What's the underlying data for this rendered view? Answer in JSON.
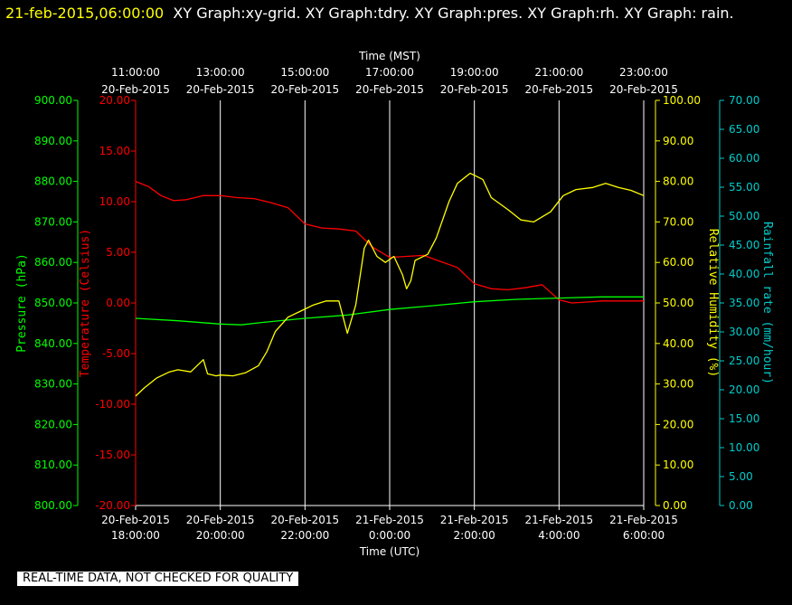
{
  "header": {
    "timestamp": "21-feb-2015,06:00:00",
    "graphs": "XY Graph:xy-grid.  XY Graph:tdry.  XY Graph:pres.  XY Graph:rh.  XY Graph: rain."
  },
  "footer": {
    "quality_note": "REAL-TIME DATA, NOT CHECKED FOR QUALITY"
  },
  "colors": {
    "background": "#000000",
    "temperature": "#ff0000",
    "pressure": "#00ff00",
    "humidity": "#ffff00",
    "rain": "#00cccc",
    "grid": "#ffffff"
  },
  "chart_data": {
    "type": "line",
    "x_range_utc_hours": [
      18,
      30
    ],
    "top_axis": {
      "label": "Time (MST)",
      "ticks": [
        {
          "t": "11:00:00",
          "d": "20-Feb-2015"
        },
        {
          "t": "13:00:00",
          "d": "20-Feb-2015"
        },
        {
          "t": "15:00:00",
          "d": "20-Feb-2015"
        },
        {
          "t": "17:00:00",
          "d": "20-Feb-2015"
        },
        {
          "t": "19:00:00",
          "d": "20-Feb-2015"
        },
        {
          "t": "21:00:00",
          "d": "20-Feb-2015"
        },
        {
          "t": "23:00:00",
          "d": "20-Feb-2015"
        }
      ]
    },
    "bottom_axis": {
      "label": "Time (UTC)",
      "ticks": [
        {
          "d": "20-Feb-2015",
          "t": "18:00:00"
        },
        {
          "d": "20-Feb-2015",
          "t": "20:00:00"
        },
        {
          "d": "20-Feb-2015",
          "t": "22:00:00"
        },
        {
          "d": "21-Feb-2015",
          "t": "0:00:00"
        },
        {
          "d": "21-Feb-2015",
          "t": "2:00:00"
        },
        {
          "d": "21-Feb-2015",
          "t": "4:00:00"
        },
        {
          "d": "21-Feb-2015",
          "t": "6:00:00"
        }
      ]
    },
    "pressure_axis": {
      "label": "Pressure (hPa)",
      "ylim": [
        800,
        900
      ],
      "ticks": [
        "800.00",
        "810.00",
        "820.00",
        "830.00",
        "840.00",
        "850.00",
        "860.00",
        "870.00",
        "880.00",
        "890.00",
        "900.00"
      ]
    },
    "temperature_axis": {
      "label": "Temperature (Celsius)",
      "ylim": [
        -20,
        20
      ],
      "ticks": [
        "-20.00",
        "-15.00",
        "-10.00",
        "-5.00",
        "0.00",
        "5.00",
        "10.00",
        "15.00",
        "20.00"
      ]
    },
    "humidity_axis": {
      "label": "Relative Humidity (%)",
      "ylim": [
        0,
        100
      ],
      "ticks": [
        "0.00",
        "10.00",
        "20.00",
        "30.00",
        "40.00",
        "50.00",
        "60.00",
        "70.00",
        "80.00",
        "90.00",
        "100.00"
      ]
    },
    "rain_axis": {
      "label": "Rainfall rate (mm/hour)",
      "ylim": [
        0,
        70
      ],
      "ticks": [
        "0.00",
        "5.00",
        "10.00",
        "15.00",
        "20.00",
        "25.00",
        "30.00",
        "35.00",
        "40.00",
        "45.00",
        "50.00",
        "55.00",
        "60.00",
        "65.00",
        "70.00"
      ]
    },
    "series": [
      {
        "name": "tdry",
        "axis": "temperature",
        "x": [
          18.0,
          18.3,
          18.6,
          18.9,
          19.2,
          19.6,
          20.0,
          20.4,
          20.8,
          21.2,
          21.6,
          22.0,
          22.4,
          22.8,
          23.2,
          23.6,
          24.0,
          24.4,
          24.8,
          25.2,
          25.6,
          26.0,
          26.4,
          26.8,
          27.2,
          27.6,
          28.0,
          28.3,
          28.7,
          29.0,
          29.4,
          29.8,
          30.0
        ],
        "y": [
          12.0,
          11.5,
          10.6,
          10.1,
          10.2,
          10.6,
          10.6,
          10.4,
          10.3,
          9.9,
          9.4,
          7.8,
          7.4,
          7.3,
          7.1,
          5.5,
          4.5,
          4.6,
          4.7,
          4.1,
          3.5,
          1.9,
          1.4,
          1.3,
          1.5,
          1.8,
          0.3,
          0.0,
          0.1,
          0.2,
          0.2,
          0.2,
          0.2
        ]
      },
      {
        "name": "pres",
        "axis": "pressure",
        "x": [
          18.0,
          19.0,
          20.0,
          20.5,
          21.0,
          22.0,
          23.0,
          24.0,
          25.0,
          26.0,
          27.0,
          28.0,
          29.0,
          30.0
        ],
        "y": [
          846.2,
          845.6,
          844.8,
          844.6,
          845.2,
          846.2,
          847.0,
          848.4,
          849.3,
          850.3,
          850.9,
          851.2,
          851.5,
          851.5
        ]
      },
      {
        "name": "rh",
        "axis": "humidity",
        "x": [
          18.0,
          18.2,
          18.5,
          18.8,
          19.0,
          19.3,
          19.6,
          19.7,
          19.9,
          20.0,
          20.3,
          20.6,
          20.9,
          21.1,
          21.3,
          21.6,
          21.9,
          22.2,
          22.5,
          22.8,
          23.0,
          23.2,
          23.4,
          23.5,
          23.7,
          23.9,
          24.1,
          24.3,
          24.4,
          24.5,
          24.6,
          24.7,
          24.9,
          25.1,
          25.4,
          25.6,
          25.9,
          26.2,
          26.4,
          26.8,
          27.1,
          27.4,
          27.8,
          28.1,
          28.4,
          28.8,
          29.1,
          29.4,
          29.7,
          30.0
        ],
        "y": [
          27.0,
          29.0,
          31.5,
          33.0,
          33.5,
          33.0,
          36.0,
          32.5,
          32.0,
          32.2,
          32.0,
          32.8,
          34.5,
          38.0,
          43.0,
          46.5,
          48.0,
          49.5,
          50.5,
          50.5,
          42.5,
          49.5,
          63.5,
          65.5,
          61.5,
          60.0,
          61.5,
          57.0,
          53.5,
          55.5,
          60.5,
          61.0,
          62.0,
          66.0,
          75.0,
          79.5,
          82.0,
          80.5,
          76.0,
          73.0,
          70.5,
          70.0,
          72.5,
          76.5,
          78.0,
          78.5,
          79.5,
          78.5,
          77.8,
          76.5
        ]
      },
      {
        "name": "rain",
        "axis": "rain",
        "x": [],
        "y": []
      }
    ]
  }
}
